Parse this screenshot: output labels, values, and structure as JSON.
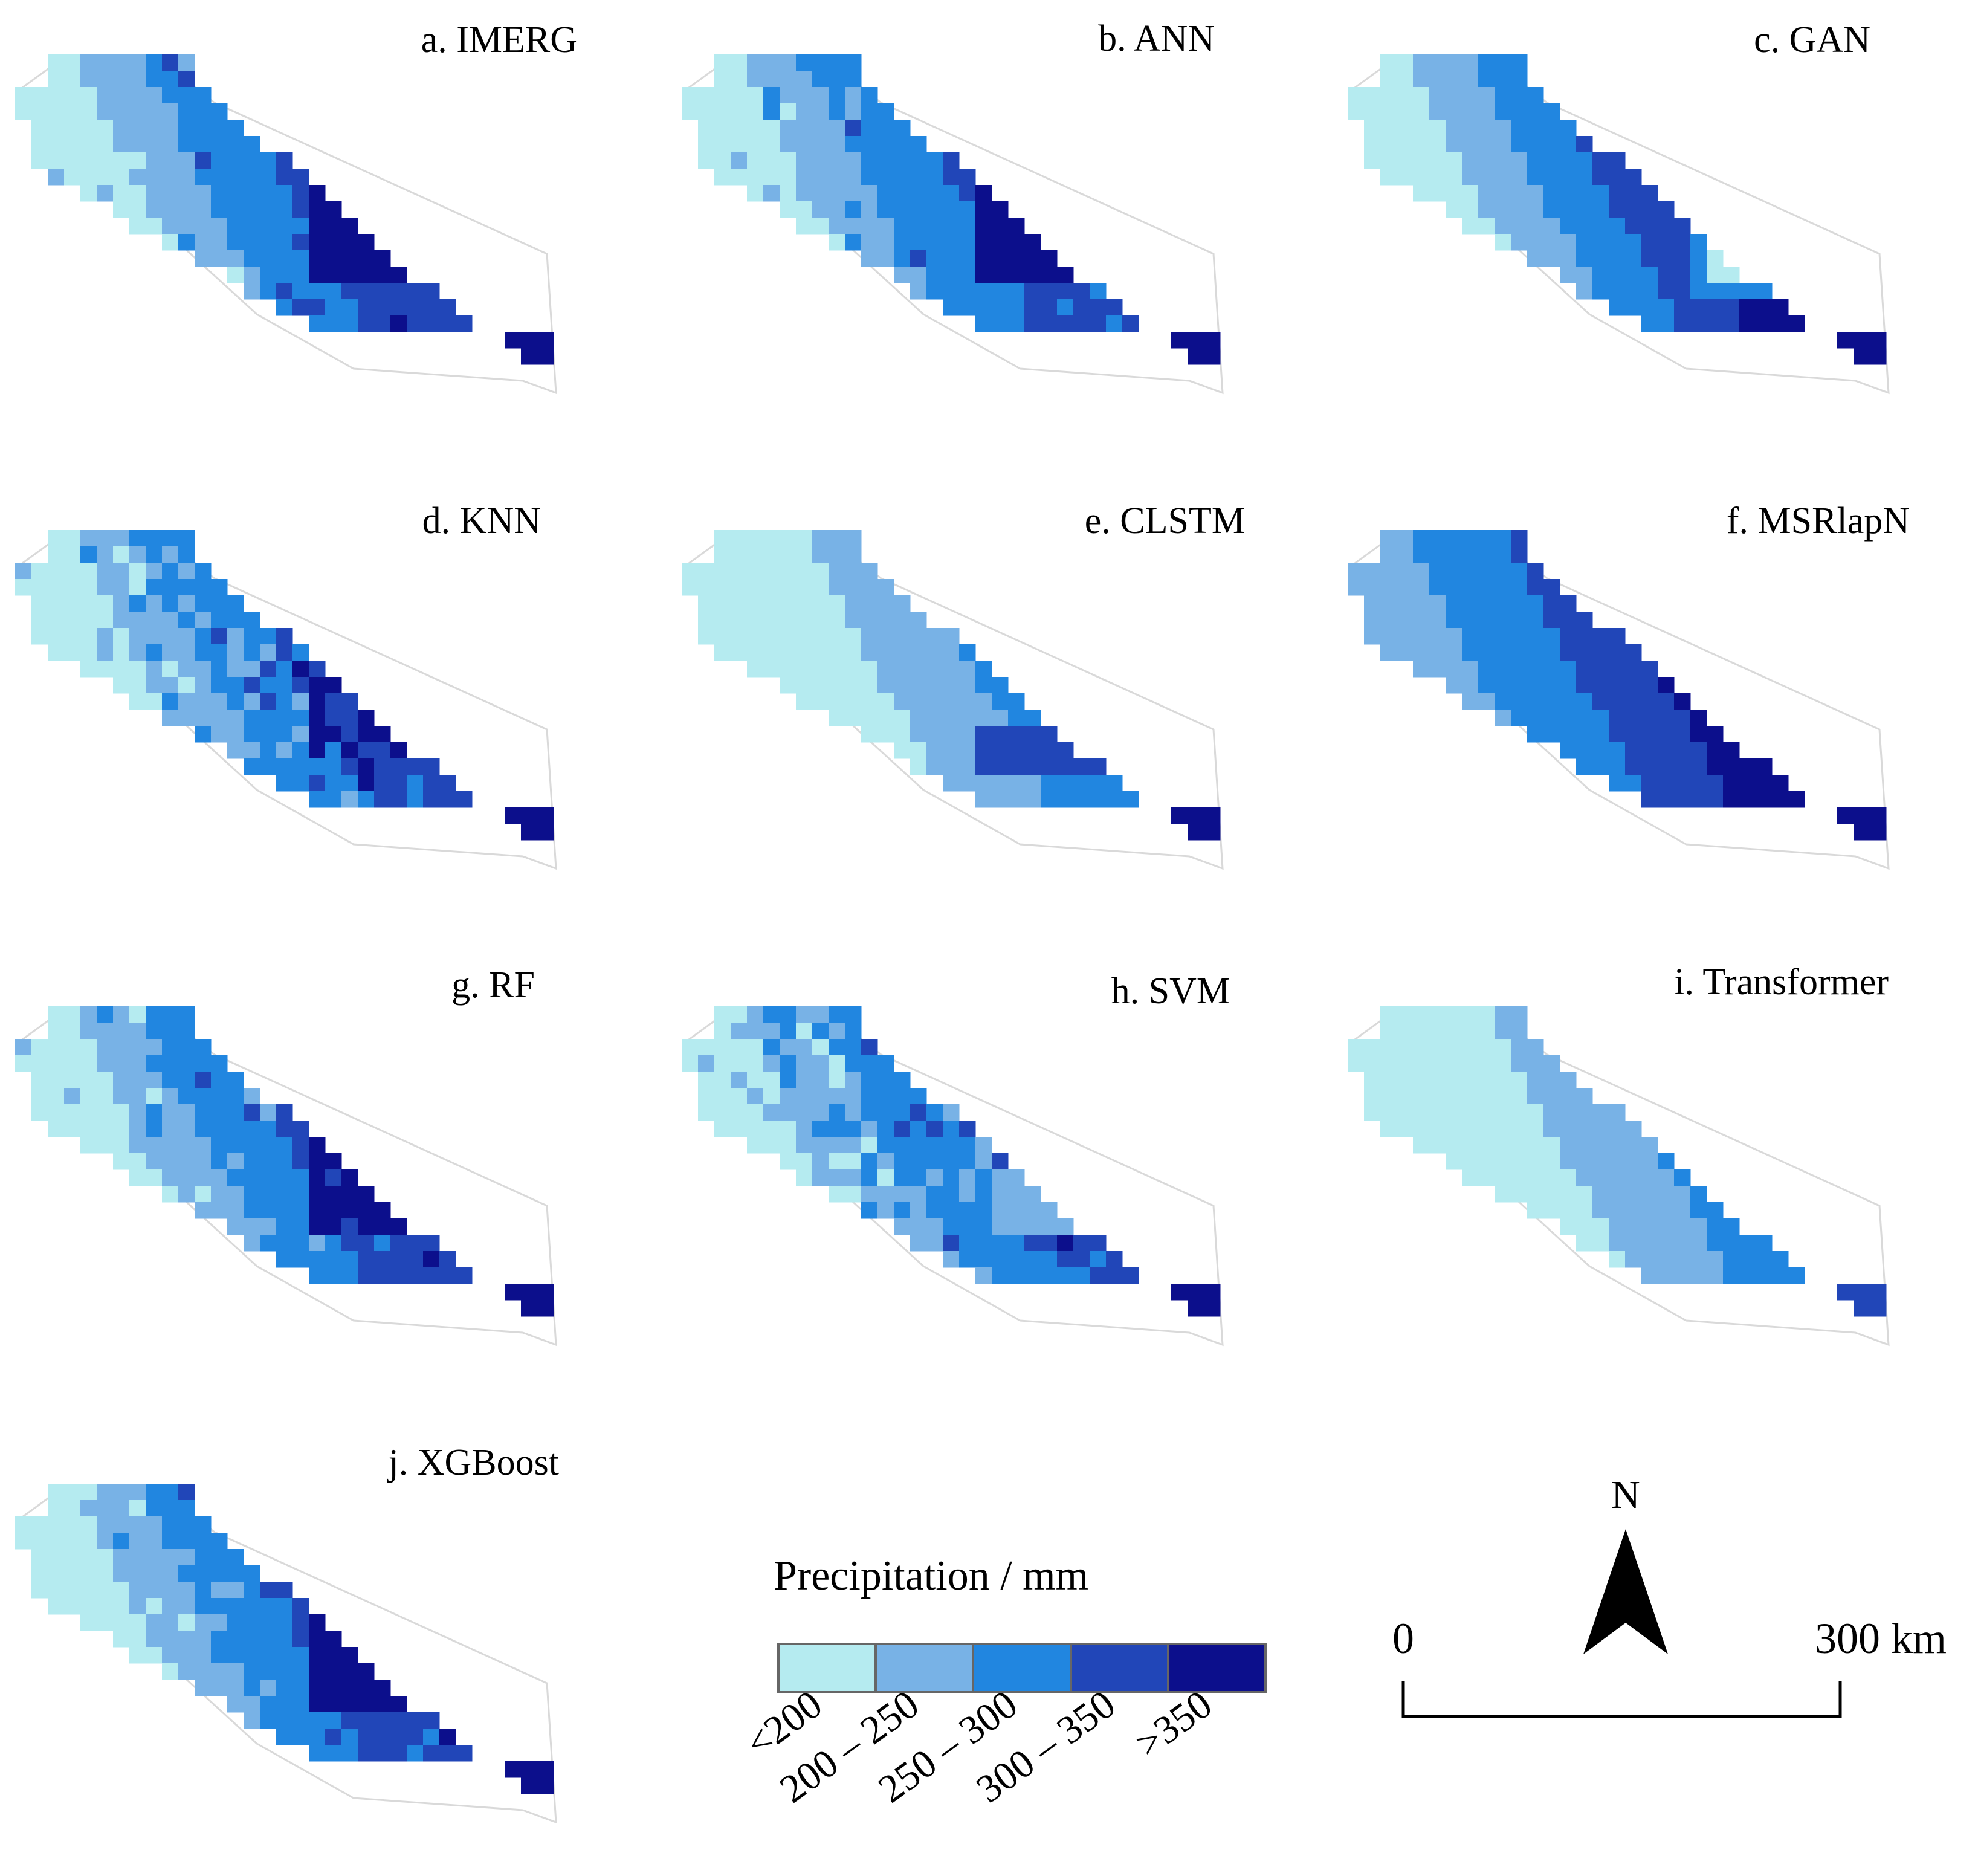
{
  "colors": {
    "class_1": "#b5ebf0",
    "class_2": "#78b2e6",
    "class_3": "#2186e0",
    "class_4": "#2146b8",
    "class_5": "#0c0f8c",
    "outline": "#d9d9d9",
    "legend_border": "#666666"
  },
  "panels": [
    {
      "id": "a",
      "title": "a. IMERG",
      "pattern": "zonal_hole"
    },
    {
      "id": "b",
      "title": "b. ANN",
      "pattern": "zonal_hole"
    },
    {
      "id": "c",
      "title": "c. GAN",
      "pattern": "gan"
    },
    {
      "id": "d",
      "title": "d. KNN",
      "pattern": "noisy"
    },
    {
      "id": "e",
      "title": "e. CLSTM",
      "pattern": "smooth"
    },
    {
      "id": "f",
      "title": "f. MSRlapN",
      "pattern": "dark"
    },
    {
      "id": "g",
      "title": "g. RF",
      "pattern": "zonal_hole"
    },
    {
      "id": "h",
      "title": "h. SVM",
      "pattern": "svm"
    },
    {
      "id": "i",
      "title": "i. Transformer",
      "pattern": "smooth_light"
    },
    {
      "id": "j",
      "title": "j. XGBoost",
      "pattern": "zonal_hole"
    }
  ],
  "legend": {
    "title": "Precipitation / mm",
    "classes": [
      {
        "label": "<200",
        "color_key": "class_1"
      },
      {
        "label": "200 – 250",
        "color_key": "class_2"
      },
      {
        "label": "250 – 300",
        "color_key": "class_3"
      },
      {
        "label": "300 – 350",
        "color_key": "class_4"
      },
      {
        "label": ">350",
        "color_key": "class_5"
      }
    ]
  },
  "north_arrow": {
    "label": "N",
    "icon": "north-arrow-icon"
  },
  "scale_bar": {
    "start_label": "0",
    "end_label": "300 km"
  }
}
